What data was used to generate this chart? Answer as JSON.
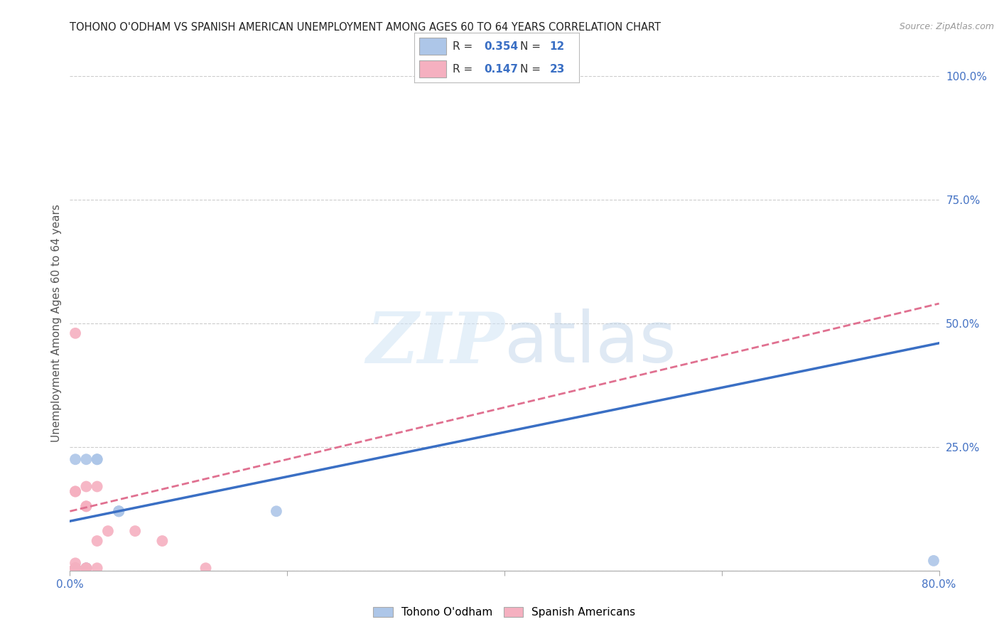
{
  "title": "TOHONO O'ODHAM VS SPANISH AMERICAN UNEMPLOYMENT AMONG AGES 60 TO 64 YEARS CORRELATION CHART",
  "source": "Source: ZipAtlas.com",
  "ylabel": "Unemployment Among Ages 60 to 64 years",
  "xlim": [
    0.0,
    0.8
  ],
  "ylim": [
    0.0,
    1.0
  ],
  "xticks": [
    0.0,
    0.2,
    0.4,
    0.6,
    0.8
  ],
  "xticklabels": [
    "0.0%",
    "",
    "",
    "",
    "80.0%"
  ],
  "yticks": [
    0.0,
    0.25,
    0.5,
    0.75,
    1.0
  ],
  "yticklabels": [
    "",
    "25.0%",
    "50.0%",
    "75.0%",
    "100.0%"
  ],
  "blue_color": "#adc6e8",
  "pink_color": "#f5b0c0",
  "blue_line_color": "#3a6fc4",
  "pink_line_color": "#e07090",
  "legend_R_blue": "0.354",
  "legend_N_blue": "12",
  "legend_R_pink": "0.147",
  "legend_N_pink": "23",
  "watermark_zip": "ZIP",
  "watermark_atlas": "atlas",
  "blue_scatter_x": [
    0.005,
    0.005,
    0.015,
    0.015,
    0.015,
    0.025,
    0.025,
    0.045,
    0.045,
    0.045,
    0.795,
    0.19
  ],
  "blue_scatter_y": [
    0.005,
    0.225,
    0.225,
    0.005,
    0.005,
    0.225,
    0.225,
    0.12,
    0.12,
    0.12,
    0.02,
    0.12
  ],
  "pink_scatter_x": [
    0.005,
    0.005,
    0.005,
    0.005,
    0.005,
    0.005,
    0.005,
    0.005,
    0.005,
    0.005,
    0.005,
    0.015,
    0.015,
    0.015,
    0.015,
    0.015,
    0.025,
    0.025,
    0.025,
    0.035,
    0.06,
    0.085,
    0.125
  ],
  "pink_scatter_y": [
    0.005,
    0.005,
    0.005,
    0.005,
    0.005,
    0.005,
    0.005,
    0.015,
    0.16,
    0.16,
    0.48,
    0.005,
    0.005,
    0.13,
    0.13,
    0.17,
    0.005,
    0.06,
    0.17,
    0.08,
    0.08,
    0.06,
    0.005
  ],
  "blue_line_x": [
    0.0,
    0.8
  ],
  "blue_line_y": [
    0.1,
    0.46
  ],
  "pink_line_x": [
    0.0,
    0.8
  ],
  "pink_line_y": [
    0.12,
    0.54
  ],
  "background_color": "#ffffff",
  "grid_color": "#cccccc",
  "title_color": "#222222",
  "axis_label_color": "#555555",
  "tick_color": "#4472c4",
  "marker_size": 130
}
